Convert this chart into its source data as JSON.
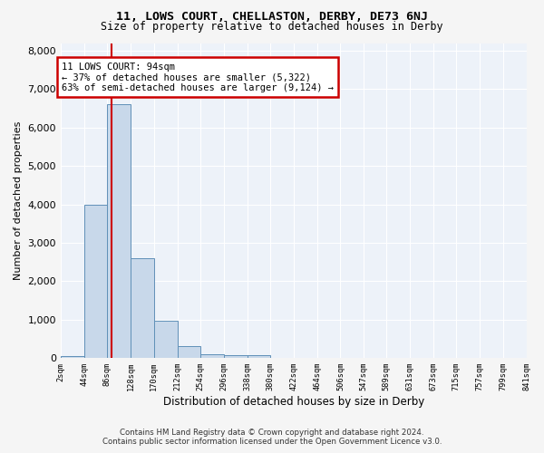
{
  "title_line1": "11, LOWS COURT, CHELLASTON, DERBY, DE73 6NJ",
  "title_line2": "Size of property relative to detached houses in Derby",
  "xlabel": "Distribution of detached houses by size in Derby",
  "ylabel": "Number of detached properties",
  "annotation_title": "11 LOWS COURT: 94sqm",
  "annotation_line2": "← 37% of detached houses are smaller (5,322)",
  "annotation_line3": "63% of semi-detached houses are larger (9,124) →",
  "property_size": 94,
  "bin_edges": [
    2,
    44,
    86,
    128,
    170,
    212,
    254,
    296,
    338,
    380,
    422,
    464,
    506,
    547,
    589,
    631,
    673,
    715,
    757,
    799,
    841
  ],
  "bar_values": [
    50,
    4000,
    6600,
    2600,
    960,
    320,
    100,
    70,
    70,
    0,
    0,
    0,
    0,
    0,
    0,
    0,
    0,
    0,
    0,
    0
  ],
  "bar_color": "#c8d8ea",
  "bar_edge_color": "#6090b8",
  "vline_color": "#cc0000",
  "annotation_box_color": "#cc0000",
  "background_color": "#edf2f9",
  "fig_background_color": "#f5f5f5",
  "grid_color": "#ffffff",
  "ylim": [
    0,
    8200
  ],
  "yticks": [
    0,
    1000,
    2000,
    3000,
    4000,
    5000,
    6000,
    7000,
    8000
  ],
  "footer_line1": "Contains HM Land Registry data © Crown copyright and database right 2024.",
  "footer_line2": "Contains public sector information licensed under the Open Government Licence v3.0."
}
